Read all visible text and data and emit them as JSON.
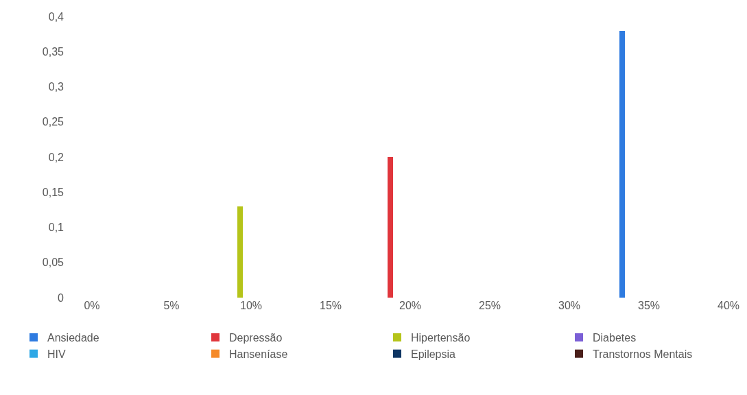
{
  "chart_data": {
    "type": "bar",
    "series": [
      {
        "name": "Ansiedade",
        "color": "#2e7be0",
        "x": [
          0.333
        ],
        "values": [
          0.38
        ]
      },
      {
        "name": "Depressão",
        "color": "#e0363c",
        "x": [
          0.1875
        ],
        "values": [
          0.2
        ]
      },
      {
        "name": "Hipertensão",
        "color": "#b5c41a",
        "x": [
          0.093
        ],
        "values": [
          0.13
        ]
      },
      {
        "name": "Diabetes",
        "color": "#7b5fd6"
      },
      {
        "name": "HIV",
        "color": "#2ea8e6"
      },
      {
        "name": "Hanseníase",
        "color": "#f58a2a"
      },
      {
        "name": "Epilepsia",
        "color": "#0e3563"
      },
      {
        "name": "Transtornos Mentais",
        "color": "#4a1f1a"
      }
    ],
    "xlim": [
      0,
      0.4
    ],
    "xticks": [
      {
        "value": 0,
        "label": "0%"
      },
      {
        "value": 0.05,
        "label": "5%"
      },
      {
        "value": 0.1,
        "label": "10%"
      },
      {
        "value": 0.15,
        "label": "15%"
      },
      {
        "value": 0.2,
        "label": "20%"
      },
      {
        "value": 0.25,
        "label": "25%"
      },
      {
        "value": 0.3,
        "label": "30%"
      },
      {
        "value": 0.35,
        "label": "35%"
      },
      {
        "value": 0.4,
        "label": "40%"
      }
    ],
    "ylim": [
      0,
      0.4
    ],
    "yticks": [
      0,
      {
        "value": 0.05,
        "label": "0,05"
      },
      {
        "value": 0.1,
        "label": "0,1"
      },
      {
        "value": 0.15,
        "label": "0,15"
      },
      {
        "value": 0.2,
        "label": "0,2"
      },
      {
        "value": 0.25,
        "label": "0,25"
      },
      {
        "value": 0.3,
        "label": "0,3"
      },
      {
        "value": 0.35,
        "label": "0,35"
      },
      {
        "value": 0.4,
        "label": "0,4"
      }
    ],
    "legend": "bottom"
  }
}
